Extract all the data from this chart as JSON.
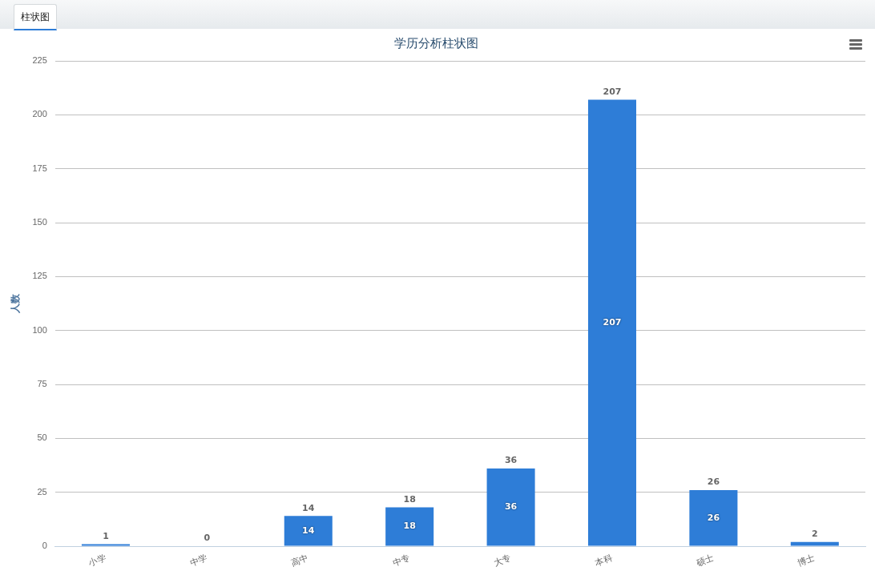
{
  "chart_data": {
    "type": "bar",
    "title": "学历分析柱状图",
    "ylabel": "人数",
    "categories": [
      "小学",
      "中学",
      "高中",
      "中专",
      "大专",
      "本科",
      "硕士",
      "博士"
    ],
    "values": [
      1,
      0,
      14,
      18,
      36,
      207,
      26,
      2
    ],
    "color": "#2e7dd7",
    "ylim": [
      0,
      225
    ],
    "yticks": [
      0,
      25,
      50,
      75,
      100,
      125,
      150,
      175,
      200,
      225
    ],
    "grid": "y",
    "legend": false,
    "data_labels": true,
    "annotations": [
      "柱状图",
      "14",
      "18",
      "36",
      "207",
      "26"
    ]
  }
}
